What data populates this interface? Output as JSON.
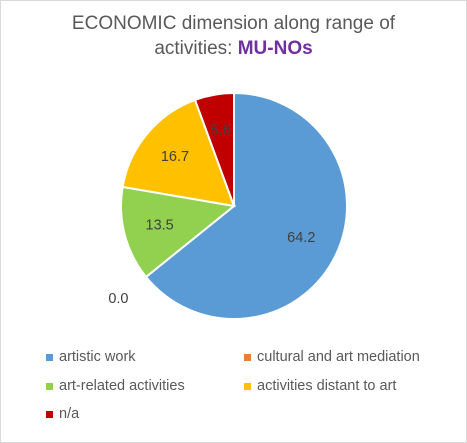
{
  "title": {
    "line1": "ECONOMIC dimension along range of",
    "line2_prefix": "activities: ",
    "line2_highlight": "MU-NOs"
  },
  "colors": {
    "title_highlight": "#7030a0",
    "text": "#595959"
  },
  "chart_data": {
    "type": "pie",
    "title": "ECONOMIC dimension along range of activities: MU-NOs",
    "categories": [
      "artistic work",
      "cultural and art mediation",
      "art-related activities",
      "activities distant to art",
      "n/a"
    ],
    "values": [
      64.2,
      0.0,
      13.5,
      16.7,
      5.6
    ],
    "colors": [
      "#5b9bd5",
      "#ed7d31",
      "#92d050",
      "#ffc000",
      "#c00000"
    ],
    "data_labels": [
      "64.2",
      "0.0",
      "13.5",
      "16.7",
      "5.6"
    ],
    "legend_position": "bottom",
    "start_angle_deg": 0,
    "direction": "clockwise"
  }
}
